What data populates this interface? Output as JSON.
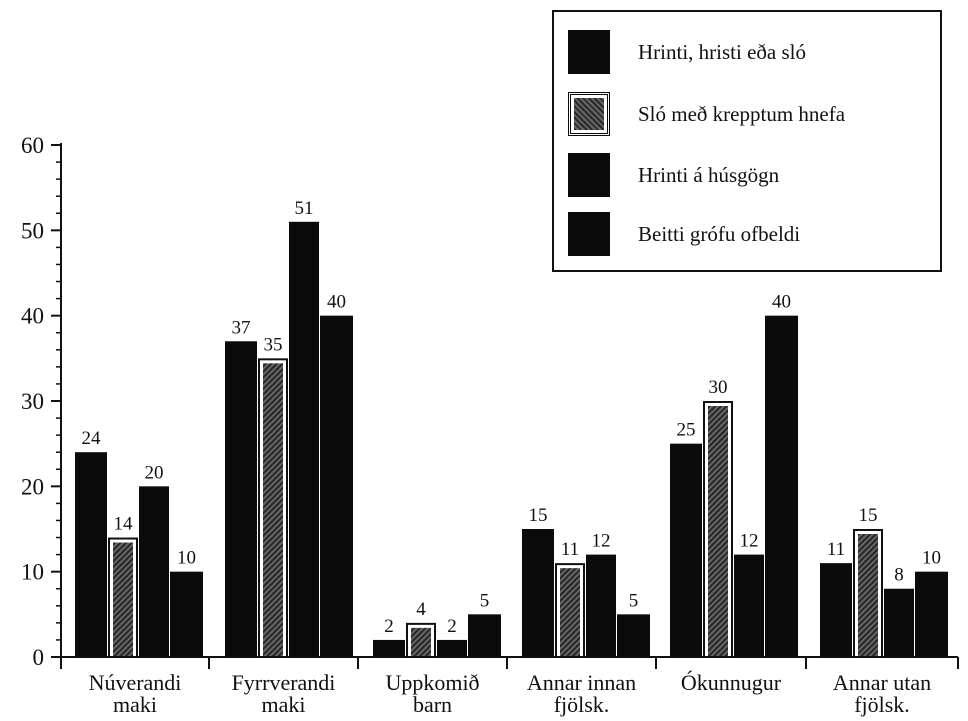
{
  "chart_data": {
    "type": "bar",
    "categories": [
      "Núverandi\nmaki",
      "Fyrrverandi\nmaki",
      "Uppkomið\nbarn",
      "Annar innan\nfjölsk.",
      "Ókunnugur",
      "Annar utan\nfjölsk."
    ],
    "series": [
      {
        "name": "Hrinti, hristi eða sló",
        "values": [
          24,
          37,
          2,
          15,
          25,
          11
        ],
        "pattern": "solid"
      },
      {
        "name": "Sló með krepptum hnefa",
        "values": [
          14,
          35,
          4,
          11,
          30,
          15
        ],
        "pattern": "hatched"
      },
      {
        "name": "Hrinti á húsgögn",
        "values": [
          20,
          51,
          2,
          12,
          12,
          8
        ],
        "pattern": "solid"
      },
      {
        "name": "Beitti grófu ofbeldi",
        "values": [
          10,
          40,
          5,
          5,
          40,
          10
        ],
        "pattern": "solid"
      }
    ],
    "data_labels": [
      [
        "24",
        "37",
        "2",
        "15",
        "25",
        "11"
      ],
      [
        "14",
        "35",
        "4",
        "11",
        "30",
        "15"
      ],
      [
        "20",
        "51",
        "2",
        "12",
        "12",
        "8"
      ],
      [
        "10",
        "40",
        "5",
        "5",
        "40",
        "10"
      ]
    ],
    "y_ticks": [
      "0",
      "10",
      "20",
      "30",
      "40",
      "50",
      "60"
    ],
    "ylim": [
      0,
      60
    ],
    "legend_position": "top-right",
    "grid": false,
    "colors": {
      "bar": "#0b0b0b",
      "hatch_dark": "#2a2a2a",
      "hatch_light": "#666666"
    }
  }
}
